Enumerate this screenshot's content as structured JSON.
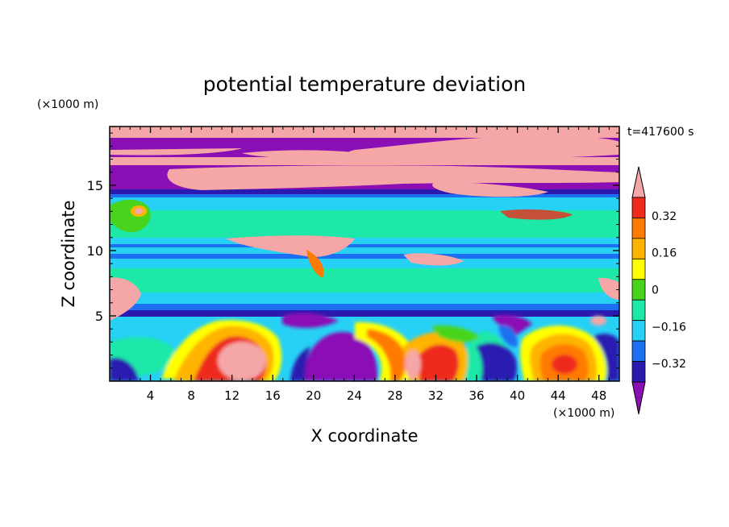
{
  "chart_data": {
    "type": "heatmap",
    "title": "potential temperature deviation",
    "xlabel": "X coordinate",
    "ylabel": "Z coordinate",
    "x_unit": "(×1000 m)",
    "y_unit": "(×1000 m)",
    "time_label": "t=417600 s",
    "xlim": [
      0,
      50
    ],
    "ylim": [
      0,
      19.5
    ],
    "x_ticks": [
      4,
      8,
      12,
      16,
      20,
      24,
      28,
      32,
      36,
      40,
      44,
      48
    ],
    "y_ticks": [
      5,
      10,
      15
    ],
    "colorbar": {
      "levels": [
        -0.4,
        -0.32,
        -0.24,
        -0.16,
        -0.08,
        0,
        0.08,
        0.16,
        0.24,
        0.32,
        0.4
      ],
      "tick_labels": [
        "0.32",
        "0.16",
        "0",
        "−0.16",
        "−0.32"
      ],
      "tick_values": [
        0.32,
        0.16,
        0,
        -0.16,
        -0.32
      ],
      "colors": [
        "#8a0fb5",
        "#2a1ab0",
        "#1c6ff0",
        "#27d0f5",
        "#1ee8a8",
        "#48d41d",
        "#ffff00",
        "#ffb400",
        "#ff7a00",
        "#ee2b1c",
        "#f5a6a6"
      ],
      "extend": "both"
    }
  }
}
